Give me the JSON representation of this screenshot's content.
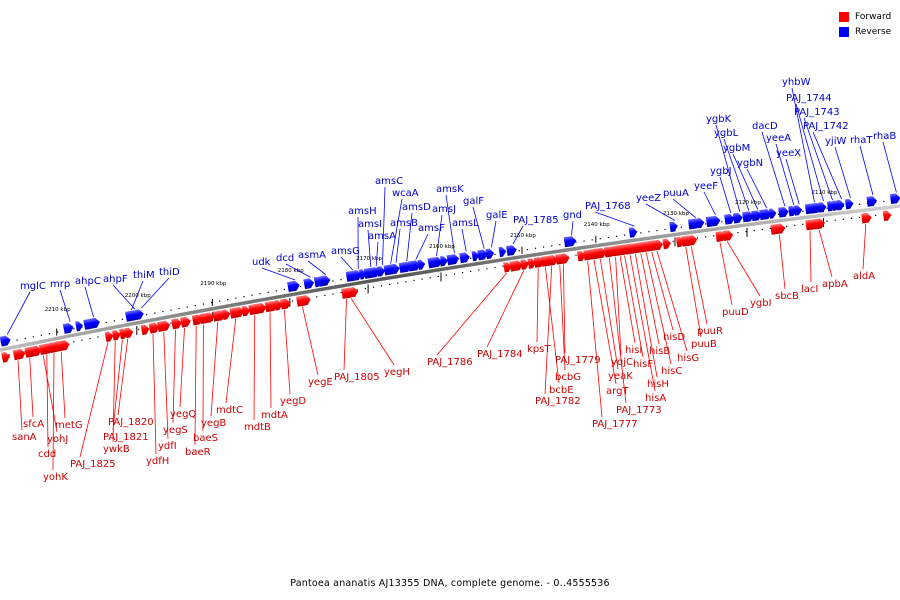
{
  "legend": {
    "forward_label": "Forward",
    "reverse_label": "Reverse",
    "forward_color": "#ff0000",
    "reverse_color": "#0000ff"
  },
  "caption": "Pantoea ananatis AJ13355 DNA, complete genome. - 0..4555536",
  "tick_labels": [
    "2210 kbp",
    "2200 kbp",
    "2190 kbp",
    "2180 kbp",
    "2170 kbp",
    "2160 kbp",
    "2150 kbp",
    "2140 kbp",
    "2130 kbp",
    "2120 kbp",
    "2110 kbp"
  ],
  "reverse_genes": [
    "mglC",
    "mrp",
    "ahpC",
    "ahpF",
    "thiM",
    "thiD",
    "udk",
    "dcd",
    "asmA",
    "amsG",
    "amsH",
    "amsI",
    "amsA",
    "amsC",
    "wcaA",
    "amsB",
    "amsD",
    "amsF",
    "amsJ",
    "amsK",
    "amsL",
    "galF",
    "galE",
    "PAJ_1785",
    "gnd",
    "PAJ_1768",
    "yeeZ",
    "puuA",
    "yeeF",
    "ygbJ",
    "ygbK",
    "ygbL",
    "ygbM",
    "ygbN",
    "dacD",
    "yeeA",
    "yeeX",
    "yhbW",
    "PAJ_1744",
    "PAJ_1743",
    "PAJ_1742",
    "yjiW",
    "rhaT",
    "rhaB"
  ],
  "forward_genes": [
    "sanA",
    "sfcA",
    "yohJ",
    "cdd",
    "yohK",
    "metG",
    "PAJ_1825",
    "ywkB",
    "PAJ_1821",
    "PAJ_1820",
    "ydfH",
    "ydfI",
    "yegS",
    "yegQ",
    "baeR",
    "baeS",
    "yegB",
    "mdtC",
    "mdtB",
    "mdtA",
    "yegD",
    "yegE",
    "PAJ_1805",
    "yegH",
    "PAJ_1786",
    "PAJ_1784",
    "kpsT",
    "bcbE",
    "PAJ_1782",
    "bcbG",
    "PAJ_1779",
    "PAJ_1777",
    "argT",
    "yeaK",
    "PAJ_1773",
    "yqjC",
    "hisI",
    "hisF",
    "hisA",
    "hisH",
    "hisB",
    "hisC",
    "hisD",
    "hisG",
    "puuB",
    "puuR",
    "puuD",
    "ygbI",
    "sbcB",
    "lacI",
    "apbA",
    "aldA"
  ]
}
